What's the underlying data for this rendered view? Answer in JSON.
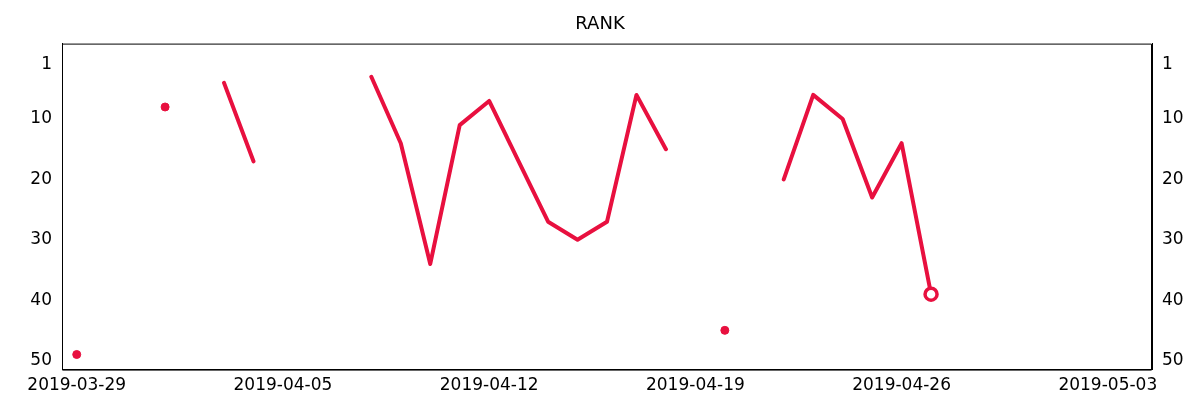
{
  "chart_data": {
    "type": "line",
    "title": "RANK",
    "x": [
      "2019-03-29",
      "2019-03-30",
      "2019-03-31",
      "2019-04-01",
      "2019-04-02",
      "2019-04-03",
      "2019-04-04",
      "2019-04-05",
      "2019-04-06",
      "2019-04-07",
      "2019-04-08",
      "2019-04-09",
      "2019-04-10",
      "2019-04-11",
      "2019-04-12",
      "2019-04-13",
      "2019-04-14",
      "2019-04-15",
      "2019-04-16",
      "2019-04-17",
      "2019-04-18",
      "2019-04-19",
      "2019-04-20",
      "2019-04-21",
      "2019-04-22",
      "2019-04-23",
      "2019-04-24",
      "2019-04-25",
      "2019-04-26",
      "2019-04-27"
    ],
    "series": [
      {
        "color": "#e8103f",
        "values": [
          49,
          null,
          null,
          8,
          null,
          4,
          17,
          null,
          null,
          null,
          3,
          14,
          34,
          11,
          7,
          17,
          27,
          30,
          27,
          6,
          15,
          null,
          45,
          null,
          20,
          6,
          10,
          23,
          14,
          39
        ]
      }
    ],
    "xlim": [
      "2019-03-28T12:00",
      "2019-05-04T12:00"
    ],
    "xticks": [
      "2019-03-29",
      "2019-04-05",
      "2019-04-12",
      "2019-04-19",
      "2019-04-26",
      "2019-05-03"
    ],
    "ylim": [
      51.5,
      -2.5
    ],
    "yticks": [
      1,
      10,
      20,
      30,
      40,
      50
    ],
    "y2lim": [
      51.5,
      -2.5
    ],
    "y2ticks": [
      1,
      10,
      20,
      30,
      40,
      50
    ],
    "grid": false,
    "legend": false,
    "line_style": "solid",
    "marker": "none"
  }
}
